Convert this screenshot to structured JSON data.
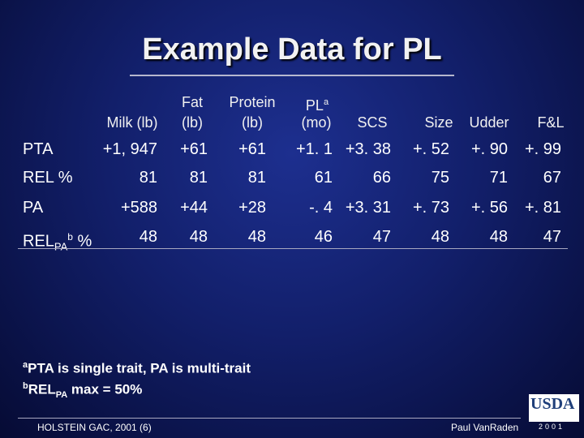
{
  "slide": {
    "title": "Example Data for PL"
  },
  "table": {
    "headers": {
      "milk": "Milk (lb)",
      "fat_line1": "Fat",
      "fat_line2": "(lb)",
      "protein_line1": "Protein",
      "protein_line2": "(lb)",
      "pl_line1": "PL",
      "pl_sup": "a",
      "pl_line2": "(mo)",
      "scs": "SCS",
      "size": "Size",
      "udder": "Udder",
      "fl": "F&L"
    },
    "rows": [
      {
        "label": "PTA",
        "values": [
          "+1, 947",
          "+61",
          "+61",
          "+1. 1",
          "+3. 38",
          "+. 52",
          "+. 90",
          "+. 99"
        ]
      },
      {
        "label": "REL %",
        "values": [
          "81",
          "81",
          "81",
          "61",
          "66",
          "75",
          "71",
          "67"
        ]
      },
      {
        "label": "PA",
        "values": [
          "+588",
          "+44",
          "+28",
          "-. 4",
          "+3. 31",
          "+. 73",
          "+. 56",
          "+. 81"
        ]
      },
      {
        "label_main": "REL",
        "label_sub": "PA",
        "label_sup": "b",
        "label_suffix": " %",
        "values": [
          "48",
          "48",
          "48",
          "46",
          "47",
          "48",
          "48",
          "47"
        ]
      }
    ]
  },
  "footnotes": {
    "a_mark": "a",
    "a_text": "PTA is single trait, PA is multi-trait",
    "b_mark": "b",
    "b_main": "REL",
    "b_sub": "PA",
    "b_text": " max = 50%"
  },
  "footer": {
    "left": "HOLSTEIN GAC, 2001 (6)",
    "right": "Paul VanRaden",
    "logo": "USDA",
    "logo_year": "2001"
  },
  "colors": {
    "background": "#121f6a",
    "text": "#ffffff"
  }
}
